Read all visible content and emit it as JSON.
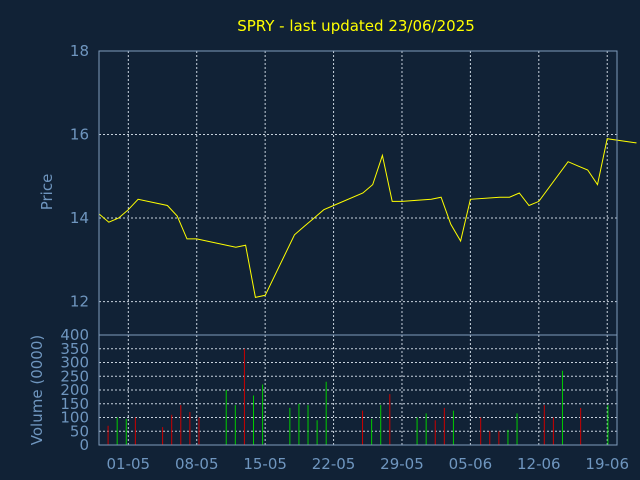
{
  "chart_data": [
    {
      "type": "line",
      "title": "SPRY - last updated 23/06/2025",
      "ylabel": "Price",
      "ylim": [
        11.2,
        18
      ],
      "yticks": [
        12,
        14,
        16,
        18
      ],
      "xlim": [
        0,
        53
      ],
      "xticks": [
        {
          "x": 3,
          "label": "01-05"
        },
        {
          "x": 10,
          "label": "08-05"
        },
        {
          "x": 17,
          "label": "15-05"
        },
        {
          "x": 24,
          "label": "22-05"
        },
        {
          "x": 31,
          "label": "29-05"
        },
        {
          "x": 38,
          "label": "05-06"
        },
        {
          "x": 45,
          "label": "12-06"
        },
        {
          "x": 52,
          "label": "19-06"
        }
      ],
      "grid": true,
      "line_color": "#ffff00",
      "series": [
        {
          "x": [
            0,
            1,
            2,
            3,
            4,
            7,
            8,
            9,
            10,
            14,
            15,
            16,
            17,
            20,
            21,
            22,
            23,
            24,
            27,
            28,
            29,
            30,
            31,
            34,
            35,
            36,
            37,
            38,
            41,
            42,
            43,
            44,
            45,
            48,
            49,
            50,
            51,
            52,
            55
          ],
          "values": [
            14.1,
            13.9,
            14.0,
            14.2,
            14.45,
            14.3,
            14.05,
            13.5,
            13.5,
            13.3,
            13.35,
            12.1,
            12.15,
            13.6,
            13.8,
            14.0,
            14.2,
            14.3,
            14.6,
            14.8,
            15.5,
            14.4,
            14.4,
            14.45,
            14.5,
            13.85,
            13.45,
            14.45,
            14.5,
            14.5,
            14.6,
            14.3,
            14.4,
            15.35,
            15.25,
            15.15,
            14.8,
            15.9,
            15.8
          ]
        }
      ]
    },
    {
      "type": "bar",
      "ylabel": "Volume (0000)",
      "ylim": [
        0,
        400
      ],
      "yticks": [
        0,
        50,
        100,
        150,
        200,
        250,
        300,
        350,
        400
      ],
      "xlim": [
        0,
        57
      ],
      "colors": {
        "up": "#00cc00",
        "down": "#cc0000"
      },
      "bars": [
        {
          "x": 1,
          "value": 70,
          "dir": "down"
        },
        {
          "x": 2,
          "value": 100,
          "dir": "up"
        },
        {
          "x": 3,
          "value": 95,
          "dir": "up"
        },
        {
          "x": 4,
          "value": 100,
          "dir": "down"
        },
        {
          "x": 7,
          "value": 65,
          "dir": "down"
        },
        {
          "x": 8,
          "value": 110,
          "dir": "down"
        },
        {
          "x": 9,
          "value": 145,
          "dir": "down"
        },
        {
          "x": 10,
          "value": 120,
          "dir": "down"
        },
        {
          "x": 11,
          "value": 100,
          "dir": "down"
        },
        {
          "x": 14,
          "value": 200,
          "dir": "up"
        },
        {
          "x": 15,
          "value": 145,
          "dir": "up"
        },
        {
          "x": 16,
          "value": 350,
          "dir": "down"
        },
        {
          "x": 17,
          "value": 180,
          "dir": "up"
        },
        {
          "x": 18,
          "value": 220,
          "dir": "up"
        },
        {
          "x": 21,
          "value": 135,
          "dir": "up"
        },
        {
          "x": 22,
          "value": 150,
          "dir": "up"
        },
        {
          "x": 23,
          "value": 145,
          "dir": "up"
        },
        {
          "x": 24,
          "value": 90,
          "dir": "up"
        },
        {
          "x": 25,
          "value": 230,
          "dir": "up"
        },
        {
          "x": 29,
          "value": 125,
          "dir": "down"
        },
        {
          "x": 30,
          "value": 95,
          "dir": "up"
        },
        {
          "x": 31,
          "value": 145,
          "dir": "up"
        },
        {
          "x": 32,
          "value": 185,
          "dir": "down"
        },
        {
          "x": 35,
          "value": 100,
          "dir": "up"
        },
        {
          "x": 36,
          "value": 115,
          "dir": "up"
        },
        {
          "x": 37,
          "value": 90,
          "dir": "down"
        },
        {
          "x": 38,
          "value": 135,
          "dir": "down"
        },
        {
          "x": 39,
          "value": 125,
          "dir": "up"
        },
        {
          "x": 42,
          "value": 100,
          "dir": "down"
        },
        {
          "x": 43,
          "value": 50,
          "dir": "down"
        },
        {
          "x": 44,
          "value": 50,
          "dir": "down"
        },
        {
          "x": 45,
          "value": 55,
          "dir": "up"
        },
        {
          "x": 46,
          "value": 115,
          "dir": "up"
        },
        {
          "x": 49,
          "value": 145,
          "dir": "down"
        },
        {
          "x": 50,
          "value": 100,
          "dir": "down"
        },
        {
          "x": 51,
          "value": 270,
          "dir": "up"
        },
        {
          "x": 53,
          "value": 135,
          "dir": "down"
        },
        {
          "x": 56,
          "value": 145,
          "dir": "up"
        }
      ]
    }
  ]
}
